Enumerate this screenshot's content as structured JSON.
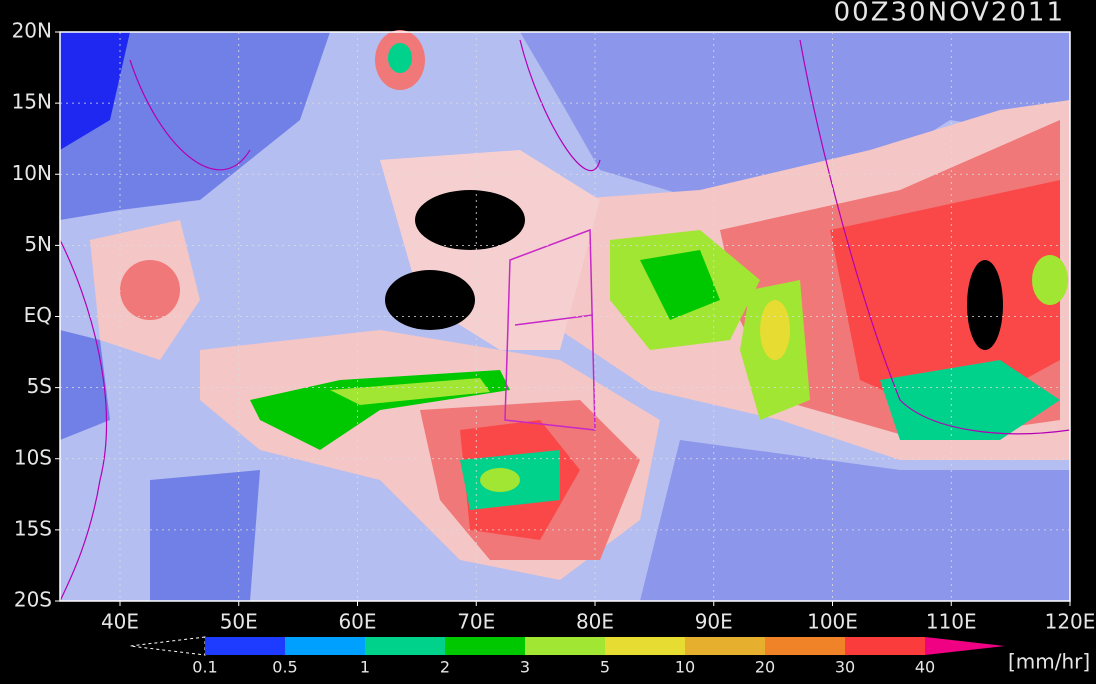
{
  "title": "00Z30NOV2011",
  "lat_labels": [
    "20N",
    "15N",
    "10N",
    "5N",
    "EQ",
    "5S",
    "10S",
    "15S",
    "20S"
  ],
  "lon_labels": [
    "40E",
    "50E",
    "60E",
    "70E",
    "80E",
    "90E",
    "100E",
    "110E",
    "120E"
  ],
  "colorbar": {
    "labels": [
      "0.1",
      "0.5",
      "1",
      "2",
      "3",
      "5",
      "10",
      "20",
      "30",
      "40"
    ],
    "colors": [
      "#1e3cff",
      "#00a0ff",
      "#00d28c",
      "#00c800",
      "#a0e632",
      "#e6dc32",
      "#e6af2d",
      "#f08228",
      "#fa3c3c",
      "#f00082"
    ],
    "unit": "[mm/hr]"
  }
}
